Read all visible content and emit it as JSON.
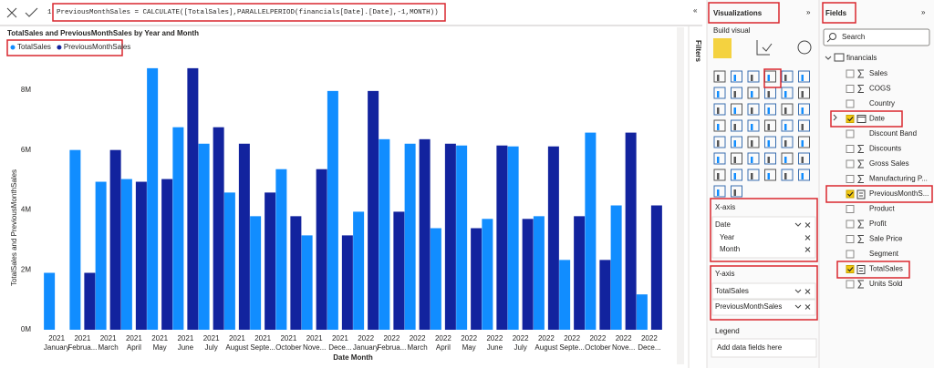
{
  "formula_bar": {
    "line_number": "1",
    "text": "PreviousMonthSales = CALCULATE([TotalSales],PARALLELPERIOD(financials[Date].[Date],-1,MONTH))"
  },
  "chart_data": {
    "type": "bar",
    "title": "TotalSales and PreviousMonthSales by Year and Month",
    "y_label": "TotalSales and PreviousMonthSales",
    "x_label": "Date Month",
    "category_years": [
      "2021",
      "2021",
      "2021",
      "2021",
      "2021",
      "2021",
      "2021",
      "2021",
      "2021",
      "2021",
      "2021",
      "2021",
      "2022",
      "2022",
      "2022",
      "2022",
      "2022",
      "2022",
      "2022",
      "2022",
      "2022",
      "2022",
      "2022",
      "2022"
    ],
    "categories": [
      "January",
      "Februa...",
      "March",
      "April",
      "May",
      "June",
      "July",
      "August",
      "Septe...",
      "October",
      "Nove...",
      "Dece...",
      "January",
      "Februa...",
      "March",
      "April",
      "May",
      "June",
      "July",
      "August",
      "Septe...",
      "October",
      "Nove...",
      "Dece..."
    ],
    "series": [
      {
        "name": "TotalSales",
        "color": "#118dff",
        "values": [
          1.9,
          6.0,
          4.94,
          5.03,
          8.73,
          6.76,
          6.21,
          4.58,
          3.79,
          5.36,
          3.15,
          7.97,
          3.94,
          6.36,
          6.21,
          3.39,
          6.15,
          3.7,
          6.12,
          3.79,
          2.33,
          6.58,
          4.15,
          1.18
        ]
      },
      {
        "name": "PreviousMonthSales",
        "color": "#12239e",
        "values": [
          null,
          1.9,
          6.0,
          4.94,
          5.03,
          8.73,
          6.76,
          6.21,
          4.58,
          3.79,
          5.36,
          3.15,
          7.97,
          3.94,
          6.36,
          6.21,
          3.39,
          6.15,
          3.7,
          6.12,
          3.79,
          2.33,
          6.58,
          4.15
        ]
      }
    ],
    "ylim": [
      0,
      9
    ],
    "yticks": [
      {
        "value": 0,
        "label": "0M"
      },
      {
        "value": 2,
        "label": "2M"
      },
      {
        "value": 4,
        "label": "4M"
      },
      {
        "value": 6,
        "label": "6M"
      },
      {
        "value": 8,
        "label": "8M"
      }
    ],
    "grid": false
  },
  "filters_label": "Filters",
  "visualizations": {
    "title": "Visualizations",
    "build_visual": "Build visual",
    "x_axis": {
      "label": "X-axis",
      "field": "Date",
      "levels": [
        "Year",
        "Month"
      ]
    },
    "y_axis": {
      "label": "Y-axis",
      "fields": [
        "TotalSales",
        "PreviousMonthSales"
      ]
    },
    "legend": {
      "label": "Legend",
      "placeholder": "Add data fields here"
    }
  },
  "fields": {
    "title": "Fields",
    "search": "Search",
    "table": "financials",
    "items": [
      {
        "name": "Sales",
        "icon": "sigma",
        "checked": false
      },
      {
        "name": "COGS",
        "icon": "sigma",
        "checked": false
      },
      {
        "name": "Country",
        "icon": "none",
        "checked": false
      },
      {
        "name": "Date",
        "icon": "calendar",
        "checked": true
      },
      {
        "name": "Discount Band",
        "icon": "none",
        "checked": false
      },
      {
        "name": "Discounts",
        "icon": "sigma",
        "checked": false
      },
      {
        "name": "Gross Sales",
        "icon": "sigma",
        "checked": false
      },
      {
        "name": "Manufacturing P...",
        "icon": "sigma",
        "checked": false
      },
      {
        "name": "PreviousMonthS...",
        "icon": "calc",
        "checked": true
      },
      {
        "name": "Product",
        "icon": "none",
        "checked": false
      },
      {
        "name": "Profit",
        "icon": "sigma",
        "checked": false
      },
      {
        "name": "Sale Price",
        "icon": "sigma",
        "checked": false
      },
      {
        "name": "Segment",
        "icon": "none",
        "checked": false
      },
      {
        "name": "TotalSales",
        "icon": "calc",
        "checked": true
      },
      {
        "name": "Units Sold",
        "icon": "sigma",
        "checked": false
      }
    ]
  }
}
